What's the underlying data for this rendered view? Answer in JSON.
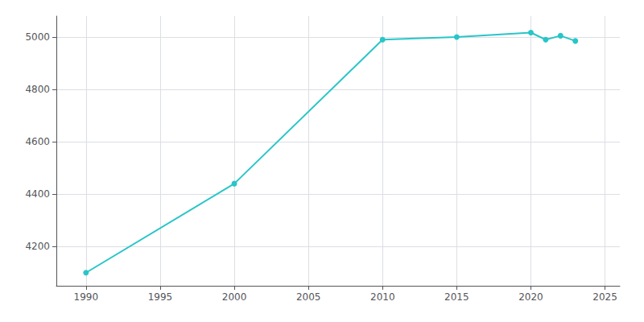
{
  "chart_data": {
    "type": "line",
    "x": [
      1990,
      2000,
      2010,
      2015,
      2020,
      2021,
      2022,
      2023
    ],
    "values": [
      4100,
      4440,
      4990,
      5000,
      5017,
      4990,
      5005,
      4985
    ],
    "color": "#29c5c8",
    "marker": "circle",
    "xlim": [
      1988,
      2026
    ],
    "ylim": [
      4050,
      5080
    ],
    "xticks": [
      1990,
      1995,
      2000,
      2005,
      2010,
      2015,
      2020,
      2025
    ],
    "yticks": [
      4200,
      4400,
      4600,
      4800,
      5000
    ],
    "grid": true
  }
}
